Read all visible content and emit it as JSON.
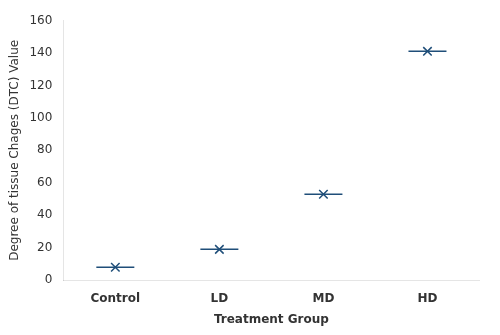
{
  "chart_data": {
    "type": "scatter",
    "categories": [
      "Control",
      "LD",
      "MD",
      "HD"
    ],
    "values": [
      8,
      19,
      53,
      141
    ],
    "color": "#1F4E79",
    "marker": "x",
    "xlabel": "Treatment Group",
    "ylabel": "Degree of tissue Chages (DTC) Value",
    "ylim": [
      0,
      160
    ],
    "yticks": [
      0,
      20,
      40,
      60,
      80,
      100,
      120,
      140,
      160
    ],
    "grid": false
  }
}
